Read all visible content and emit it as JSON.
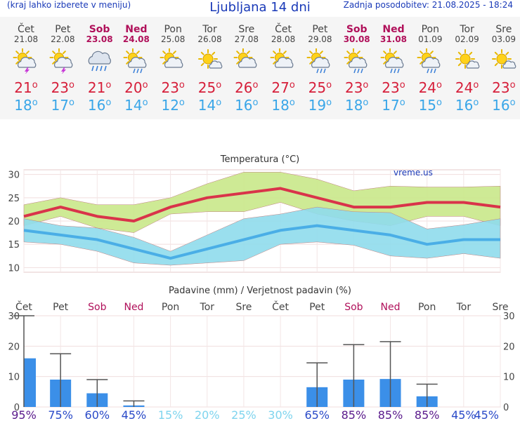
{
  "header": {
    "left_note": "(kraj lahko izberete v meniju)",
    "title": "Ljubljana 14 dni",
    "updated": "Zadnja posodobitev: 21.08.2025 - 18:24"
  },
  "days": [
    {
      "name": "Čet",
      "date": "21.08",
      "weekend": false,
      "icon": "sun-cloud-thunder",
      "tmax": "21",
      "tmin": "18"
    },
    {
      "name": "Pet",
      "date": "22.08",
      "weekend": false,
      "icon": "sun-cloud-thunder",
      "tmax": "23",
      "tmin": "17"
    },
    {
      "name": "Sob",
      "date": "23.08",
      "weekend": true,
      "icon": "cloud-rain",
      "tmax": "21",
      "tmin": "16"
    },
    {
      "name": "Ned",
      "date": "24.08",
      "weekend": true,
      "icon": "sun-cloud-rain",
      "tmax": "20",
      "tmin": "14"
    },
    {
      "name": "Pon",
      "date": "25.08",
      "weekend": false,
      "icon": "sun-cloud",
      "tmax": "23",
      "tmin": "12"
    },
    {
      "name": "Tor",
      "date": "26.08",
      "weekend": false,
      "icon": "sun-small-cloud",
      "tmax": "25",
      "tmin": "14"
    },
    {
      "name": "Sre",
      "date": "27.08",
      "weekend": false,
      "icon": "sun-cloud",
      "tmax": "26",
      "tmin": "16"
    },
    {
      "name": "Čet",
      "date": "28.08",
      "weekend": false,
      "icon": "sun-cloud",
      "tmax": "27",
      "tmin": "18"
    },
    {
      "name": "Pet",
      "date": "29.08",
      "weekend": false,
      "icon": "sun-cloud-rain",
      "tmax": "25",
      "tmin": "19"
    },
    {
      "name": "Sob",
      "date": "30.08",
      "weekend": true,
      "icon": "sun-cloud-rain",
      "tmax": "23",
      "tmin": "18"
    },
    {
      "name": "Ned",
      "date": "31.08",
      "weekend": true,
      "icon": "sun-cloud-rain",
      "tmax": "23",
      "tmin": "17"
    },
    {
      "name": "Pon",
      "date": "01.09",
      "weekend": false,
      "icon": "sun-cloud-rain",
      "tmax": "24",
      "tmin": "15"
    },
    {
      "name": "Tor",
      "date": "02.09",
      "weekend": false,
      "icon": "sun-small-cloud",
      "tmax": "24",
      "tmin": "16"
    },
    {
      "name": "Sre",
      "date": "03.09",
      "weekend": false,
      "icon": "sun-small-cloud",
      "tmax": "23",
      "tmin": "16"
    }
  ],
  "deg_symbol": "o",
  "chart_data": [
    {
      "type": "line",
      "title": "Temperatura (°C)",
      "watermark": "vreme.us",
      "ylim": [
        9,
        31
      ],
      "yticks": [
        10,
        15,
        20,
        25,
        30
      ],
      "categories": [
        "21.08",
        "22.08",
        "23.08",
        "24.08",
        "25.08",
        "26.08",
        "27.08",
        "28.08",
        "29.08",
        "30.08",
        "31.08",
        "01.09",
        "02.09",
        "03.09"
      ],
      "series": [
        {
          "role": "max",
          "color": "#d9344a",
          "values": [
            21,
            23,
            21,
            20,
            23,
            25,
            26,
            27,
            25,
            23,
            23,
            24,
            24,
            23
          ]
        },
        {
          "role": "max_band_high",
          "values": [
            23.5,
            25,
            23.5,
            23.5,
            25,
            28,
            30.5,
            30.5,
            29,
            26.5,
            27.5,
            27.3,
            27.3,
            27.5
          ]
        },
        {
          "role": "max_band_low",
          "values": [
            19,
            21,
            18.5,
            17.5,
            21.5,
            22,
            22,
            24,
            21.5,
            20,
            19,
            21,
            21,
            19
          ]
        },
        {
          "role": "min",
          "color": "#4aaee6",
          "values": [
            18,
            17,
            16,
            14,
            12,
            14,
            16,
            18,
            19,
            18,
            17,
            15,
            16,
            16
          ]
        },
        {
          "role": "min_band_high",
          "values": [
            20.5,
            19,
            18.5,
            16.5,
            13.5,
            17,
            20.5,
            21.5,
            23,
            22,
            21.8,
            18.3,
            19.2,
            20.5
          ]
        },
        {
          "role": "min_band_low",
          "values": [
            15.5,
            15,
            13.5,
            11,
            10.5,
            11,
            11.5,
            15,
            15.5,
            14.8,
            12.5,
            12,
            13,
            12
          ]
        }
      ]
    },
    {
      "type": "bar",
      "title": "Padavine (mm) / Verjetnost padavin (%)",
      "ylim": [
        0,
        30
      ],
      "yticks": [
        0,
        10,
        20,
        30
      ],
      "categories": [
        "Čet",
        "Pet",
        "Sob",
        "Ned",
        "Pon",
        "Tor",
        "Sre",
        "Čet",
        "Pet",
        "Sob",
        "Ned",
        "Pon",
        "Tor",
        "Sre"
      ],
      "weekend": [
        false,
        false,
        true,
        true,
        false,
        false,
        false,
        false,
        false,
        true,
        true,
        false,
        false,
        false
      ],
      "values": [
        16,
        9,
        4.5,
        0.5,
        0,
        0,
        0,
        0,
        6.5,
        9,
        9.2,
        3.5,
        0,
        0
      ],
      "error_high": [
        30,
        17.5,
        9,
        2,
        0,
        0,
        0,
        0,
        14.5,
        20.5,
        21.5,
        7.5,
        0,
        0
      ],
      "probability": [
        "95%",
        "75%",
        "60%",
        "45%",
        "15%",
        "20%",
        "25%",
        "30%",
        "65%",
        "85%",
        "85%",
        "85%",
        "45%",
        "45%"
      ],
      "bar_color": "#3b8fe8"
    }
  ],
  "colors": {
    "max_band": "#c9e88a",
    "min_band": "#8fdcec",
    "overlap": "#8ccf8a",
    "prob_high": "#5a1a8c",
    "prob_mid": "#2a4ac8",
    "prob_low": "#7fd4ee"
  }
}
